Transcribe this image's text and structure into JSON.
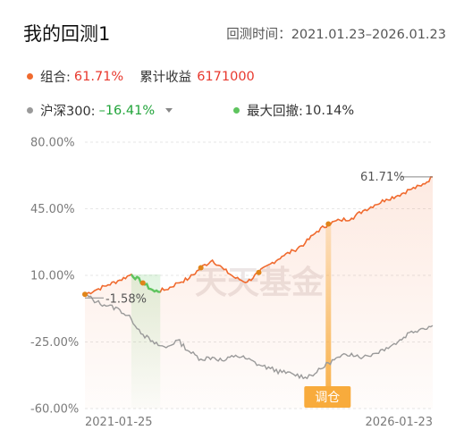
{
  "header": {
    "title": "我的回测1",
    "period_label": "回测时间：",
    "period_start": "2021.01.23",
    "period_sep": "–",
    "period_end": "2026.01.23"
  },
  "legend": {
    "portfolio_label": "组合:",
    "portfolio_value": "61.71%",
    "cumulative_label": "累计收益",
    "cumulative_value": "6171000",
    "benchmark_label": "沪深300:",
    "benchmark_value": "–16.41%",
    "drawdown_label": "最大回撤:",
    "drawdown_value": "10.14%"
  },
  "colors": {
    "portfolio": "#f06a2e",
    "benchmark": "#9a9a9a",
    "drawdown": "#5ec45e",
    "rebalance": "#f8ab3c",
    "watermark": "#ece6e6",
    "red_value": "#e8392e",
    "green_value": "#21a43a"
  },
  "watermark": "天天基金",
  "chart_data": {
    "type": "line",
    "title": "",
    "xlabel": "",
    "ylabel": "",
    "ylim": [
      -60,
      80
    ],
    "y_ticks": [
      "80.00%",
      "45.00%",
      "10.00%",
      "-25.00%",
      "-60.00%"
    ],
    "y_tick_values": [
      80,
      45,
      10,
      -25,
      -60
    ],
    "x_tick_labels": [
      "2021-01-25",
      "2026-01-23"
    ],
    "x": [
      0,
      2,
      4,
      6,
      8,
      10,
      12,
      14,
      16,
      18,
      20,
      22,
      24,
      26,
      28,
      30,
      32,
      34,
      36,
      38,
      40,
      42,
      44,
      46,
      48,
      50,
      52,
      54,
      56,
      58,
      60
    ],
    "x_unit": "months since 2021-01-25",
    "series": [
      {
        "name": "组合",
        "values": [
          0,
          2.5,
          5,
          7.5,
          10.5,
          6,
          1.5,
          2.5,
          6,
          8.5,
          14,
          18,
          13,
          8.5,
          6.5,
          11.5,
          16,
          20,
          23,
          27,
          33,
          37,
          39,
          40,
          44,
          47,
          50,
          52,
          55,
          57,
          61.71
        ]
      },
      {
        "name": "沪深300",
        "values": [
          0,
          -4,
          -6,
          -8,
          -13,
          -21,
          -26,
          -28,
          -24,
          -30,
          -34,
          -33,
          -35,
          -32,
          -34,
          -37,
          -39,
          -41,
          -42,
          -43.5,
          -41,
          -36,
          -33,
          -31,
          -33,
          -31,
          -28,
          -25,
          -20,
          -18,
          -16.41
        ]
      }
    ],
    "annotations": [
      {
        "text": "-1.58%",
        "target": "sample point near start"
      },
      {
        "text": "61.71%",
        "target": "latest portfolio value"
      },
      {
        "text": "调仓",
        "target": "rebalance marker"
      }
    ],
    "rebalance_points": [
      10,
      20,
      30,
      42
    ],
    "max_drawdown_range": [
      8,
      13
    ],
    "legend_position": "top"
  }
}
